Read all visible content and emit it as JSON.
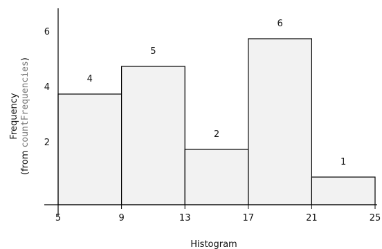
{
  "chart_data": {
    "type": "bar",
    "title": "",
    "xlabel": "Histogram",
    "ylabel_line1": "Frequency",
    "ylabel_line2_prefix": "(from ",
    "ylabel_line2_code": "countFrequencies",
    "ylabel_line2_suffix": ")",
    "bins": [
      {
        "start": 5,
        "end": 9,
        "value": 4
      },
      {
        "start": 9,
        "end": 13,
        "value": 5
      },
      {
        "start": 13,
        "end": 17,
        "value": 2
      },
      {
        "start": 17,
        "end": 21,
        "value": 6
      },
      {
        "start": 21,
        "end": 25,
        "value": 1
      }
    ],
    "x_ticks": [
      5,
      9,
      13,
      17,
      21,
      25
    ],
    "y_ticks": [
      2,
      4,
      6
    ],
    "xlim": [
      5,
      25
    ],
    "ylim": [
      0,
      7
    ],
    "grid": false,
    "colors": {
      "bar_fill": "#f2f2f2",
      "bar_stroke": "#000000"
    }
  }
}
